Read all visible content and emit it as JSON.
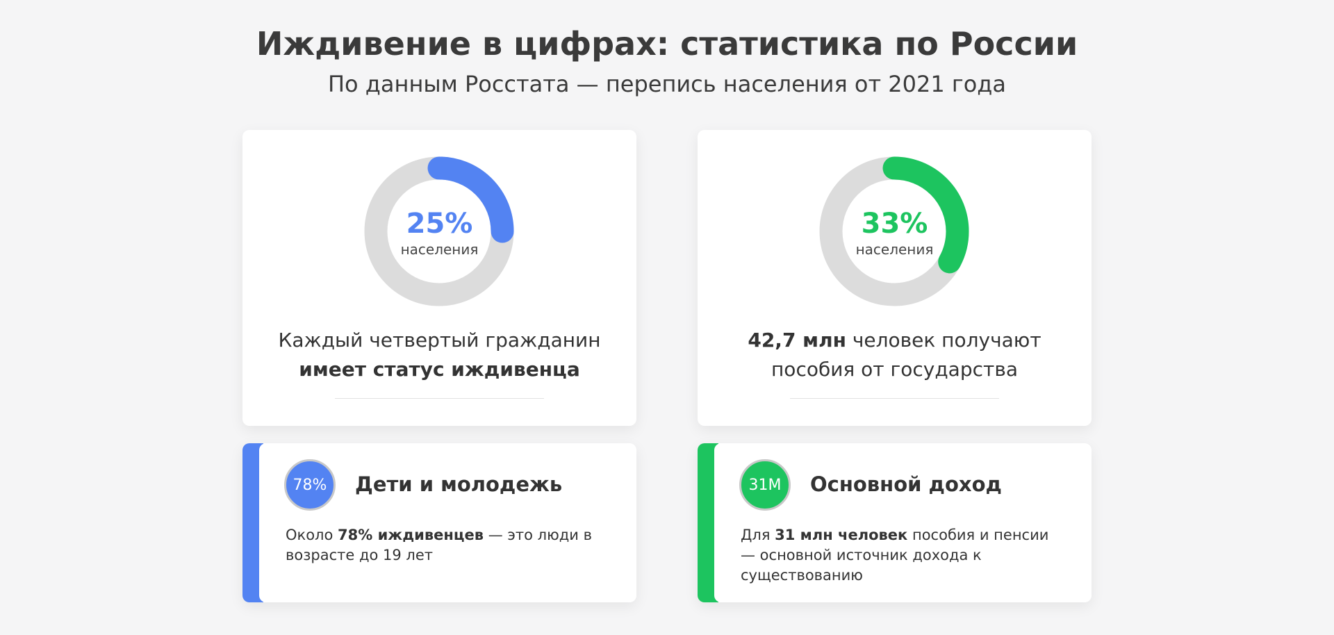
{
  "header": {
    "title": "Иждивение в цифрах: статистика по России",
    "subtitle": "По данным Росстата — перепись населения от 2021 года"
  },
  "stats": [
    {
      "value": 25,
      "value_label": "25%",
      "unit": "населения",
      "color": "#5383f2",
      "caption": [
        [
          {
            "text": "Каждый четвертый гражданин"
          }
        ],
        [
          {
            "text": "имеет статус иждивенца",
            "bold": true
          }
        ]
      ]
    },
    {
      "value": 33,
      "value_label": "33%",
      "unit": "населения",
      "color": "#1dc45f",
      "caption": [
        [
          {
            "text": "42,7 млн",
            "bold": true
          },
          {
            "text": " человек получают"
          }
        ],
        [
          {
            "text": "пособия от государства"
          }
        ]
      ]
    }
  ],
  "facts": [
    {
      "badge": "78%",
      "title": "Дети и молодежь",
      "color": "#5383f2",
      "body": [
        {
          "text": "Около "
        },
        {
          "text": "78% иждивенцев",
          "bold": true
        },
        {
          "text": " — это люди в возрасте до 19 лет"
        }
      ]
    },
    {
      "badge": "31M",
      "title": "Основной доход",
      "color": "#1dc45f",
      "body": [
        {
          "text": "Для "
        },
        {
          "text": "31 млн человек",
          "bold": true
        },
        {
          "text": " пособия и пенсии — основной источник дохода к существованию"
        }
      ]
    }
  ]
}
